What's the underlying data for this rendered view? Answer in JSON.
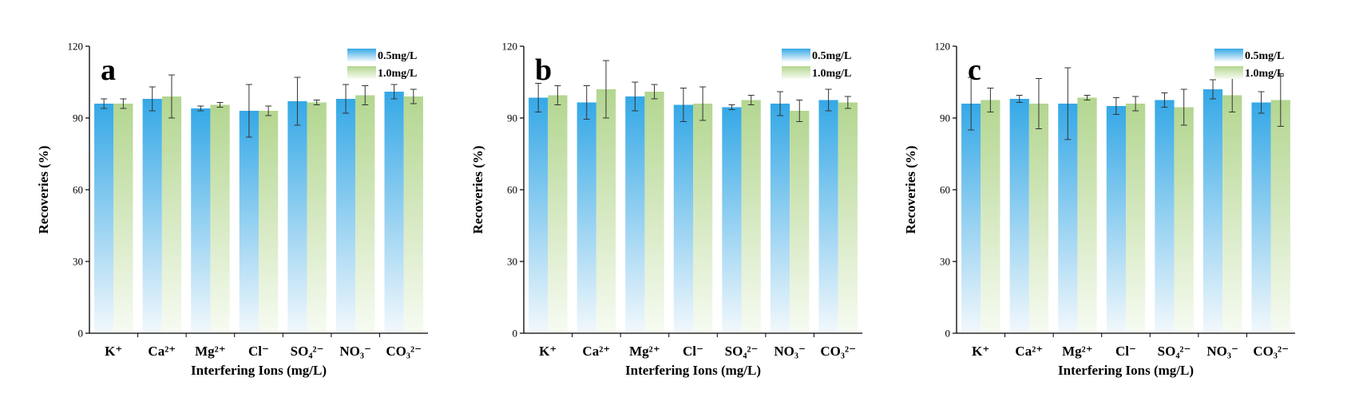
{
  "colors": {
    "series_0_top": "#35a8e6",
    "series_0_bottom": "#f2f8fc",
    "series_1_top": "#b3d690",
    "series_1_bottom": "#f7fbf2",
    "error_bar": "#333333",
    "axis": "#000000"
  },
  "chart_data": [
    {
      "type": "bar",
      "panel_label": "a",
      "categories": [
        "K⁺",
        "Ca²⁺",
        "Mg²⁺",
        "Cl⁻",
        "SO₄²⁻",
        "NO₃⁻",
        "CO₃²⁻"
      ],
      "series": [
        {
          "name": "0.5mg/L",
          "values": [
            96,
            98,
            94,
            93,
            97,
            98,
            101
          ],
          "errors": [
            2,
            5,
            1,
            11,
            10,
            6,
            3
          ]
        },
        {
          "name": "1.0mg/L",
          "values": [
            96,
            99,
            95.5,
            93,
            96.5,
            99.5,
            99
          ],
          "errors": [
            2,
            9,
            1,
            2,
            1,
            4,
            3
          ]
        }
      ],
      "xlabel": "Interfering Ions (mg/L)",
      "ylabel": "Recoveries (%)",
      "ylim": [
        0,
        120
      ],
      "yticks": [
        0,
        30,
        60,
        90,
        120
      ],
      "legend_position": "top-right"
    },
    {
      "type": "bar",
      "panel_label": "b",
      "categories": [
        "K⁺",
        "Ca²⁺",
        "Mg²⁺",
        "Cl⁻",
        "SO₄²⁻",
        "NO₃⁻",
        "CO₃²⁻"
      ],
      "series": [
        {
          "name": "0.5mg/L",
          "values": [
            98.5,
            96.5,
            99,
            95.5,
            94.5,
            96,
            97.5
          ],
          "errors": [
            6,
            7,
            6,
            7,
            1,
            5,
            4.5
          ]
        },
        {
          "name": "1.0mg/L",
          "values": [
            99.5,
            102,
            101,
            96,
            97.5,
            93,
            96.5
          ],
          "errors": [
            4,
            12,
            3,
            7,
            2,
            4.5,
            2.5
          ]
        }
      ],
      "xlabel": "Interfering Ions (mg/L)",
      "ylabel": "Recoveries (%)",
      "ylim": [
        0,
        120
      ],
      "yticks": [
        0,
        30,
        60,
        90,
        120
      ],
      "legend_position": "top-right"
    },
    {
      "type": "bar",
      "panel_label": "c",
      "categories": [
        "K⁺",
        "Ca²⁺",
        "Mg²⁺",
        "Cl⁻",
        "SO₄²⁻",
        "NO₃⁻",
        "CO₃²⁻"
      ],
      "series": [
        {
          "name": "0.5mg/L",
          "values": [
            96,
            98,
            96,
            95,
            97.5,
            102,
            96.5
          ],
          "errors": [
            11,
            1.5,
            15,
            3.5,
            3,
            4,
            4.5
          ]
        },
        {
          "name": "1.0mg/L",
          "values": [
            97.5,
            96,
            98.5,
            96,
            94.5,
            99.5,
            97.5
          ],
          "errors": [
            5,
            10.5,
            1,
            3,
            7.5,
            7,
            11
          ]
        }
      ],
      "xlabel": "Interfering Ions (mg/L)",
      "ylabel": "Recoveries (%)",
      "ylim": [
        0,
        120
      ],
      "yticks": [
        0,
        30,
        60,
        90,
        120
      ],
      "legend_position": "top-right"
    }
  ]
}
